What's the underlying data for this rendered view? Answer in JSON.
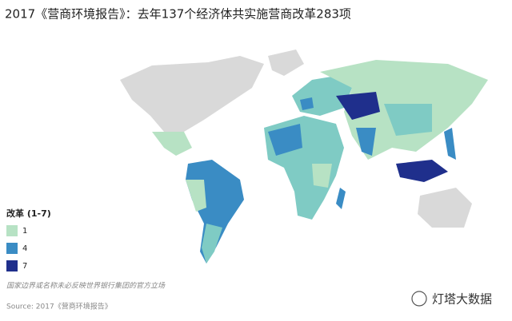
{
  "header": {
    "title": "2017《营商环境报告》：去年137个经济体共实施营商改革283项"
  },
  "legend": {
    "title": "改革 (1-7)",
    "items": [
      {
        "value": 1,
        "color": "#b7e2c4"
      },
      {
        "value": 4,
        "color": "#3a8cc4"
      },
      {
        "value": 7,
        "color": "#1f2f8c"
      }
    ]
  },
  "footer": {
    "disclaimer": "国家边界或名称未必反映世界银行集团的官方立场",
    "source": "Source: 2017《营商环境报告》"
  },
  "watermark": "灯塔大数据"
}
